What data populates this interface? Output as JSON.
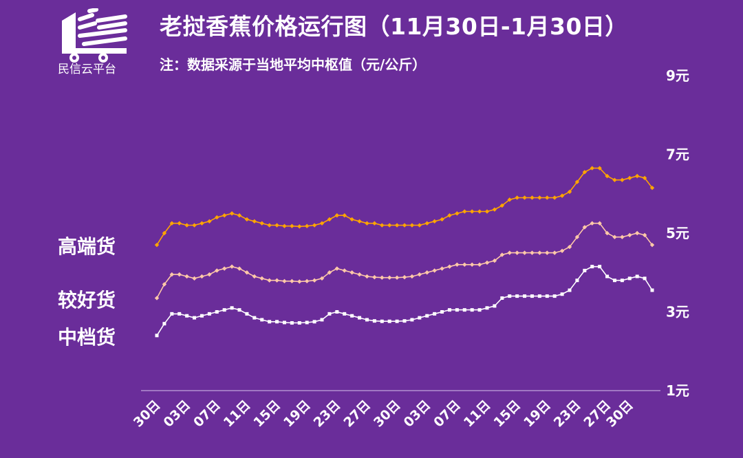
{
  "header": {
    "title": "老挝香蕉价格运行图（11月30日-1月30日）",
    "note": "注：数据采源于当地平均中枢值（元/公斤）",
    "logo_text": "民信云平台"
  },
  "colors": {
    "background": "#6a2d9a",
    "high": "#ffa500",
    "mid": "#ffc9a8",
    "low": "#ffffff"
  },
  "chart_data": {
    "type": "line",
    "title": "老挝香蕉价格运行图（11月30日-1月30日）",
    "ylim": [
      1,
      9
    ],
    "y_ticks": [
      "9元",
      "7元",
      "5元",
      "3元",
      "1元"
    ],
    "y_tick_values": [
      9,
      7,
      5,
      3,
      1
    ],
    "x_tick_labels": [
      "30日",
      "03日",
      "07日",
      "11日",
      "15日",
      "19日",
      "23日",
      "27日",
      "30日",
      "03日",
      "07日",
      "11日",
      "15日",
      "19日",
      "23日",
      "27日",
      "30日"
    ],
    "x_tick_index": [
      0,
      4,
      8,
      12,
      16,
      20,
      24,
      28,
      32,
      36,
      40,
      44,
      48,
      52,
      56,
      60,
      63
    ],
    "series": [
      {
        "name": "高端货",
        "color": "#ffa500",
        "values": [
          4.7,
          5.0,
          5.25,
          5.25,
          5.2,
          5.2,
          5.25,
          5.3,
          5.4,
          5.45,
          5.5,
          5.45,
          5.35,
          5.3,
          5.25,
          5.2,
          5.2,
          5.18,
          5.18,
          5.17,
          5.18,
          5.2,
          5.25,
          5.35,
          5.45,
          5.45,
          5.35,
          5.3,
          5.25,
          5.25,
          5.2,
          5.2,
          5.2,
          5.2,
          5.2,
          5.2,
          5.25,
          5.3,
          5.35,
          5.45,
          5.5,
          5.55,
          5.55,
          5.55,
          5.55,
          5.6,
          5.7,
          5.85,
          5.9,
          5.9,
          5.9,
          5.9,
          5.9,
          5.9,
          5.95,
          6.05,
          6.3,
          6.55,
          6.65,
          6.65,
          6.45,
          6.35,
          6.35,
          6.4,
          6.45,
          6.4,
          6.15
        ]
      },
      {
        "name": "较好货",
        "color": "#ffc9a8",
        "values": [
          3.35,
          3.7,
          3.95,
          3.95,
          3.9,
          3.85,
          3.9,
          3.95,
          4.05,
          4.1,
          4.15,
          4.1,
          4.0,
          3.9,
          3.85,
          3.8,
          3.8,
          3.78,
          3.78,
          3.77,
          3.78,
          3.8,
          3.85,
          4.0,
          4.1,
          4.05,
          4.0,
          3.95,
          3.9,
          3.88,
          3.87,
          3.87,
          3.87,
          3.88,
          3.9,
          3.95,
          4.0,
          4.05,
          4.1,
          4.15,
          4.2,
          4.2,
          4.2,
          4.2,
          4.25,
          4.3,
          4.45,
          4.5,
          4.5,
          4.5,
          4.5,
          4.5,
          4.5,
          4.5,
          4.55,
          4.65,
          4.9,
          5.15,
          5.25,
          5.25,
          5.0,
          4.9,
          4.9,
          4.95,
          5.0,
          4.95,
          4.7
        ]
      },
      {
        "name": "中档货",
        "color": "#ffffff",
        "values": [
          2.4,
          2.7,
          2.95,
          2.95,
          2.9,
          2.85,
          2.9,
          2.95,
          3.0,
          3.05,
          3.1,
          3.05,
          2.95,
          2.85,
          2.8,
          2.75,
          2.75,
          2.73,
          2.72,
          2.72,
          2.73,
          2.75,
          2.8,
          2.95,
          3.0,
          2.95,
          2.9,
          2.85,
          2.8,
          2.77,
          2.76,
          2.76,
          2.76,
          2.77,
          2.8,
          2.85,
          2.9,
          2.95,
          3.0,
          3.05,
          3.05,
          3.05,
          3.05,
          3.05,
          3.1,
          3.15,
          3.35,
          3.4,
          3.4,
          3.4,
          3.4,
          3.4,
          3.4,
          3.4,
          3.45,
          3.55,
          3.8,
          4.05,
          4.15,
          4.15,
          3.9,
          3.8,
          3.8,
          3.85,
          3.9,
          3.85,
          3.55
        ]
      }
    ]
  }
}
